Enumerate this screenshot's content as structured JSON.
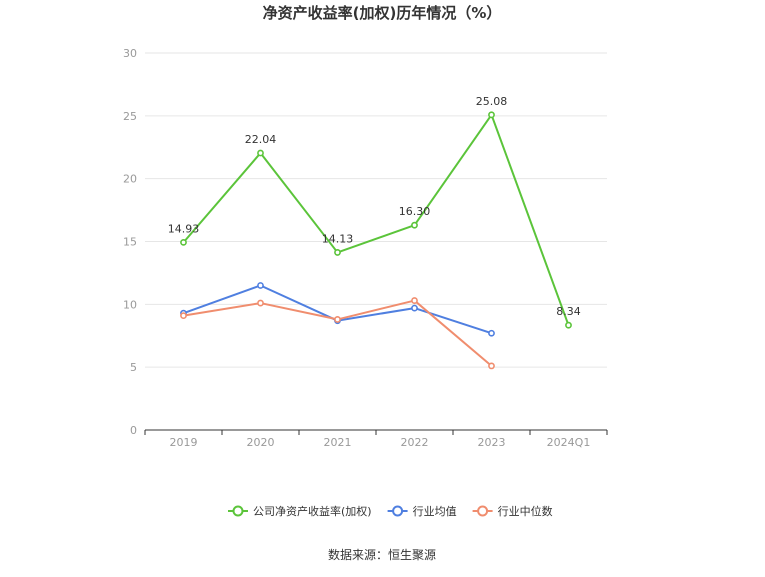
{
  "chart_data": {
    "type": "line",
    "title": "净资产收益率(加权)历年情况（%）",
    "categories": [
      "2019",
      "2020",
      "2021",
      "2022",
      "2023",
      "2024Q1"
    ],
    "ylim": [
      0,
      30
    ],
    "yticks": [
      0,
      5,
      10,
      15,
      20,
      25,
      30
    ],
    "grid": true,
    "legend_position": "bottom",
    "series": [
      {
        "name": "公司净资产收益率(加权)",
        "color": "#5bc43a",
        "values": [
          14.93,
          22.04,
          14.13,
          16.3,
          25.08,
          8.34
        ],
        "labels": [
          "14.93",
          "22.04",
          "14.13",
          "16.30",
          "25.08",
          "8.34"
        ]
      },
      {
        "name": "行业均值",
        "color": "#4f7fe0",
        "values": [
          9.3,
          11.5,
          8.7,
          9.7,
          7.7,
          null
        ]
      },
      {
        "name": "行业中位数",
        "color": "#f08d6e",
        "values": [
          9.1,
          10.1,
          8.8,
          10.3,
          5.1,
          null
        ]
      }
    ],
    "source": "数据来源：恒生聚源"
  }
}
